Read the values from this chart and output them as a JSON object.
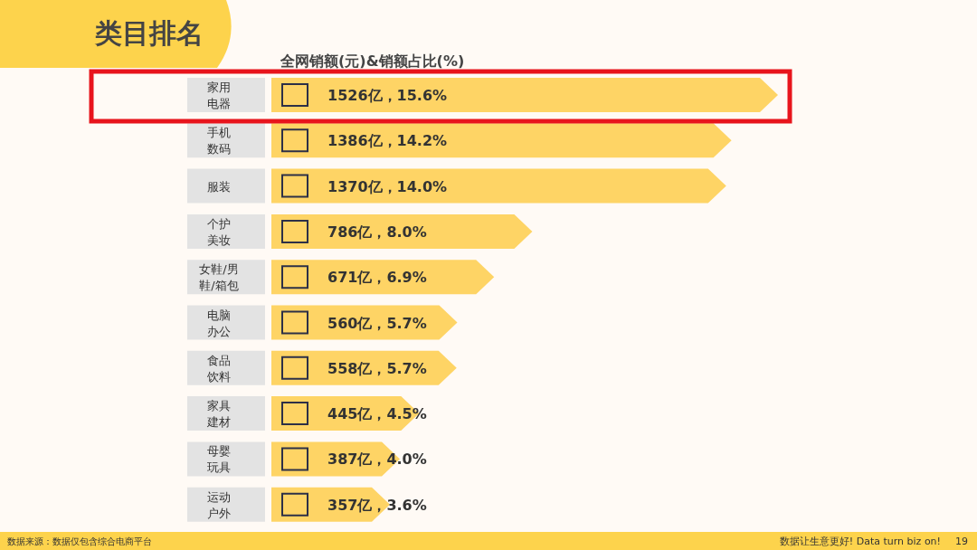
{
  "chart_data": {
    "type": "bar",
    "orientation": "horizontal",
    "title": "类目排名",
    "xlabel": "全网销额(元)&销额占比(%)",
    "categories": [
      "家用电器",
      "手机数码",
      "服装",
      "个护美妆",
      "女鞋/男鞋/箱包",
      "电脑办公",
      "食品饮料",
      "家具建材",
      "母婴玩具",
      "运动户外"
    ],
    "values": [
      1526,
      1386,
      1370,
      786,
      671,
      560,
      558,
      445,
      387,
      357
    ],
    "value_labels": [
      "1526亿，15.6%",
      "1386亿，14.2%",
      "1370亿，14.0%",
      "786亿，8.0%",
      "671亿，6.9%",
      "560亿，5.7%",
      "558亿，5.7%",
      "445亿，4.5%",
      "387亿，4.0%",
      "357亿，3.6%"
    ],
    "color": "#fed465",
    "annotations": [
      "数据来源：数据仅包含综合电商平台",
      "数据让生意更好! Data turn biz on!",
      "19"
    ]
  }
}
